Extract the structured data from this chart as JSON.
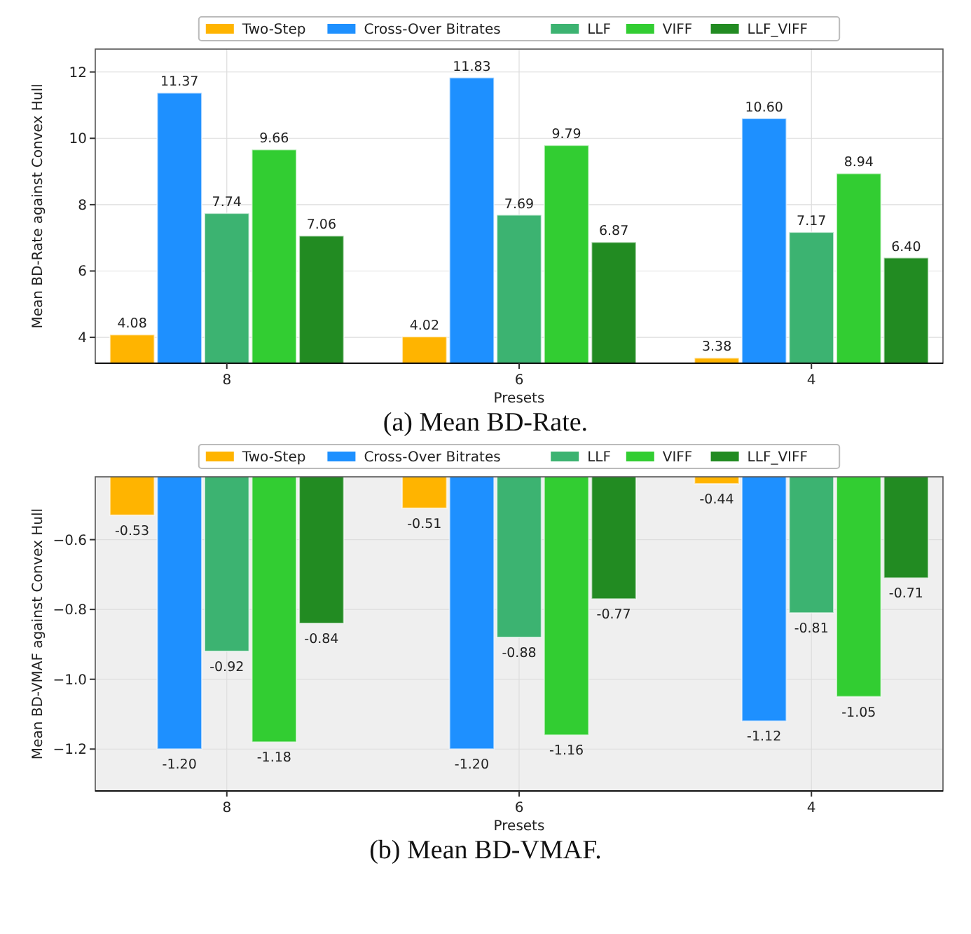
{
  "chart_data": [
    {
      "type": "bar",
      "xlabel": "Presets",
      "ylabel": "Mean BD-Rate against Convex Hull",
      "categories": [
        "8",
        "6",
        "4"
      ],
      "series": [
        {
          "name": "Two-Step",
          "color": "#ffb400",
          "values": [
            4.08,
            4.02,
            3.38
          ],
          "value_labels": [
            "4.08",
            "4.02",
            "3.38"
          ]
        },
        {
          "name": "Cross-Over Bitrates",
          "color": "#1e90ff",
          "values": [
            11.37,
            11.83,
            10.6
          ],
          "value_labels": [
            "11.37",
            "11.83",
            "10.60"
          ]
        },
        {
          "name": "LLF",
          "color": "#3cb371",
          "values": [
            7.74,
            7.69,
            7.17
          ],
          "value_labels": [
            "7.74",
            "7.69",
            "7.17"
          ]
        },
        {
          "name": "VIFF",
          "color": "#32cd32",
          "values": [
            9.66,
            9.79,
            8.94
          ],
          "value_labels": [
            "9.66",
            "9.79",
            "8.94"
          ]
        },
        {
          "name": "LLF_VIFF",
          "color": "#228b22",
          "values": [
            7.06,
            6.87,
            6.4
          ],
          "value_labels": [
            "7.06",
            "6.87",
            "6.40"
          ]
        }
      ],
      "ylim": [
        3.22,
        12.69
      ],
      "yticks": [
        4,
        6,
        8,
        10,
        12
      ],
      "grid": true,
      "legend": "top",
      "annotations": [
        "(a) Mean BD-Rate."
      ]
    },
    {
      "type": "bar",
      "xlabel": "Presets",
      "ylabel": "Mean BD-VMAF against Convex Hull",
      "categories": [
        "8",
        "6",
        "4"
      ],
      "series": [
        {
          "name": "Two-Step",
          "color": "#ffb400",
          "values": [
            -0.53,
            -0.51,
            -0.44
          ],
          "value_labels": [
            "-0.53",
            "-0.51",
            "-0.44"
          ]
        },
        {
          "name": "Cross-Over Bitrates",
          "color": "#1e90ff",
          "values": [
            -1.2,
            -1.2,
            -1.12
          ],
          "value_labels": [
            "-1.20",
            "-1.20",
            "-1.12"
          ]
        },
        {
          "name": "LLF",
          "color": "#3cb371",
          "values": [
            -0.92,
            -0.88,
            -0.81
          ],
          "value_labels": [
            "-0.92",
            "-0.88",
            "-0.81"
          ]
        },
        {
          "name": "VIFF",
          "color": "#32cd32",
          "values": [
            -1.18,
            -1.16,
            -1.05
          ],
          "value_labels": [
            "-1.18",
            "-1.16",
            "-1.05"
          ]
        },
        {
          "name": "LLF_VIFF",
          "color": "#228b22",
          "values": [
            -0.84,
            -0.77,
            -0.71
          ],
          "value_labels": [
            "-0.84",
            "-0.77",
            "-0.71"
          ]
        }
      ],
      "ylim": [
        -1.32,
        -0.42
      ],
      "yticks": [
        {
          "value": -1.2,
          "label": "−1.2"
        },
        {
          "value": -1.0,
          "label": "−1.0"
        },
        {
          "value": -0.8,
          "label": "−0.8"
        },
        {
          "value": -0.6,
          "label": "−0.6"
        }
      ],
      "grid": true,
      "legend": "top",
      "annotations": [
        "(b) Mean BD-VMAF."
      ]
    }
  ]
}
